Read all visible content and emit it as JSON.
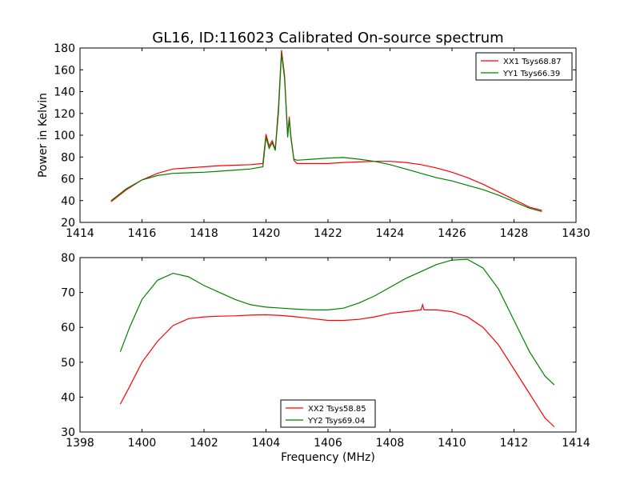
{
  "figure": {
    "title": "GL16, ID:116023 Calibrated On-source spectrum",
    "xlabel": "Frequency (MHz)",
    "ylabel": "Power in Kelvin"
  },
  "chart_data": [
    {
      "type": "line",
      "title": "GL16, ID:116023 Calibrated On-source spectrum",
      "xlabel": "",
      "ylabel": "Power in Kelvin",
      "xlim": [
        1414,
        1430
      ],
      "ylim": [
        20,
        180
      ],
      "xticks": [
        1414,
        1416,
        1418,
        1420,
        1422,
        1424,
        1426,
        1428,
        1430
      ],
      "yticks": [
        20,
        40,
        60,
        80,
        100,
        120,
        140,
        160,
        180
      ],
      "legend_position": "top-right",
      "series": [
        {
          "name": "XX1 Tsys68.87",
          "color": "#ff0000",
          "x": [
            1415.0,
            1415.5,
            1416.0,
            1416.5,
            1417.0,
            1417.5,
            1418.0,
            1418.5,
            1419.0,
            1419.5,
            1419.9,
            1420.0,
            1420.1,
            1420.2,
            1420.3,
            1420.4,
            1420.5,
            1420.6,
            1420.7,
            1420.75,
            1420.8,
            1420.9,
            1421.0,
            1421.5,
            1422.0,
            1422.5,
            1423.0,
            1423.5,
            1424.0,
            1424.5,
            1425.0,
            1425.5,
            1426.0,
            1426.5,
            1427.0,
            1427.5,
            1428.0,
            1428.5,
            1428.9
          ],
          "y": [
            39,
            50,
            59,
            65,
            69,
            70,
            71,
            72,
            72.5,
            73,
            74,
            101,
            90,
            95,
            87,
            125,
            178,
            155,
            100,
            117,
            100,
            77,
            74,
            74,
            74,
            75,
            75.5,
            76,
            76,
            75,
            73,
            70,
            66,
            61,
            55,
            48,
            41,
            34,
            31
          ]
        },
        {
          "name": "YY1 Tsys66.39",
          "color": "#008000",
          "x": [
            1415.0,
            1415.5,
            1416.0,
            1416.5,
            1417.0,
            1417.5,
            1418.0,
            1418.5,
            1419.0,
            1419.5,
            1419.9,
            1420.0,
            1420.1,
            1420.2,
            1420.3,
            1420.4,
            1420.5,
            1420.6,
            1420.7,
            1420.75,
            1420.8,
            1420.9,
            1421.0,
            1421.5,
            1422.0,
            1422.5,
            1423.0,
            1423.5,
            1424.0,
            1424.5,
            1425.0,
            1425.5,
            1426.0,
            1426.5,
            1427.0,
            1427.5,
            1428.0,
            1428.5,
            1428.9
          ],
          "y": [
            40,
            51,
            59,
            63,
            65,
            65.5,
            66,
            67,
            68,
            69,
            71,
            98,
            88,
            93,
            86,
            120,
            175,
            152,
            98,
            115,
            98,
            78,
            77,
            78,
            79,
            79.5,
            78,
            76,
            73,
            69,
            65,
            61,
            58,
            54,
            50,
            45,
            39,
            33,
            30
          ]
        }
      ]
    },
    {
      "type": "line",
      "title": "",
      "xlabel": "Frequency (MHz)",
      "ylabel": "",
      "xlim": [
        1398,
        1414
      ],
      "ylim": [
        30,
        80
      ],
      "xticks": [
        1398,
        1400,
        1402,
        1404,
        1406,
        1408,
        1410,
        1412,
        1414
      ],
      "yticks": [
        30,
        40,
        50,
        60,
        70,
        80
      ],
      "legend_position": "lower-center",
      "series": [
        {
          "name": "XX2 Tsys58.85",
          "color": "#ff0000",
          "x": [
            1399.3,
            1399.6,
            1400.0,
            1400.5,
            1401.0,
            1401.5,
            1402.0,
            1402.5,
            1403.0,
            1403.5,
            1404.0,
            1404.5,
            1405.0,
            1405.5,
            1406.0,
            1406.5,
            1407.0,
            1407.5,
            1408.0,
            1408.5,
            1409.0,
            1409.05,
            1409.1,
            1409.5,
            1410.0,
            1410.5,
            1411.0,
            1411.5,
            1412.0,
            1412.5,
            1413.0,
            1413.3
          ],
          "y": [
            38,
            43,
            50,
            56,
            60.5,
            62.5,
            63,
            63.2,
            63.3,
            63.5,
            63.6,
            63.4,
            63,
            62.5,
            62,
            62,
            62.3,
            63,
            64,
            64.5,
            65,
            66.5,
            65,
            65,
            64.5,
            63,
            60,
            55,
            48,
            41,
            34,
            31.5
          ]
        },
        {
          "name": "YY2 Tsys69.04",
          "color": "#008000",
          "x": [
            1399.3,
            1399.6,
            1400.0,
            1400.5,
            1401.0,
            1401.5,
            1402.0,
            1402.5,
            1403.0,
            1403.5,
            1404.0,
            1404.5,
            1405.0,
            1405.5,
            1406.0,
            1406.5,
            1407.0,
            1407.5,
            1408.0,
            1408.5,
            1409.0,
            1409.5,
            1410.0,
            1410.5,
            1411.0,
            1411.5,
            1412.0,
            1412.5,
            1413.0,
            1413.3
          ],
          "y": [
            53,
            60,
            68,
            73.5,
            75.5,
            74.5,
            72,
            70,
            68,
            66.5,
            65.8,
            65.5,
            65.2,
            65,
            65,
            65.5,
            67,
            69,
            71.5,
            74,
            76,
            78,
            79.3,
            79.5,
            77,
            71,
            62,
            53,
            46,
            43.5
          ]
        }
      ]
    }
  ]
}
